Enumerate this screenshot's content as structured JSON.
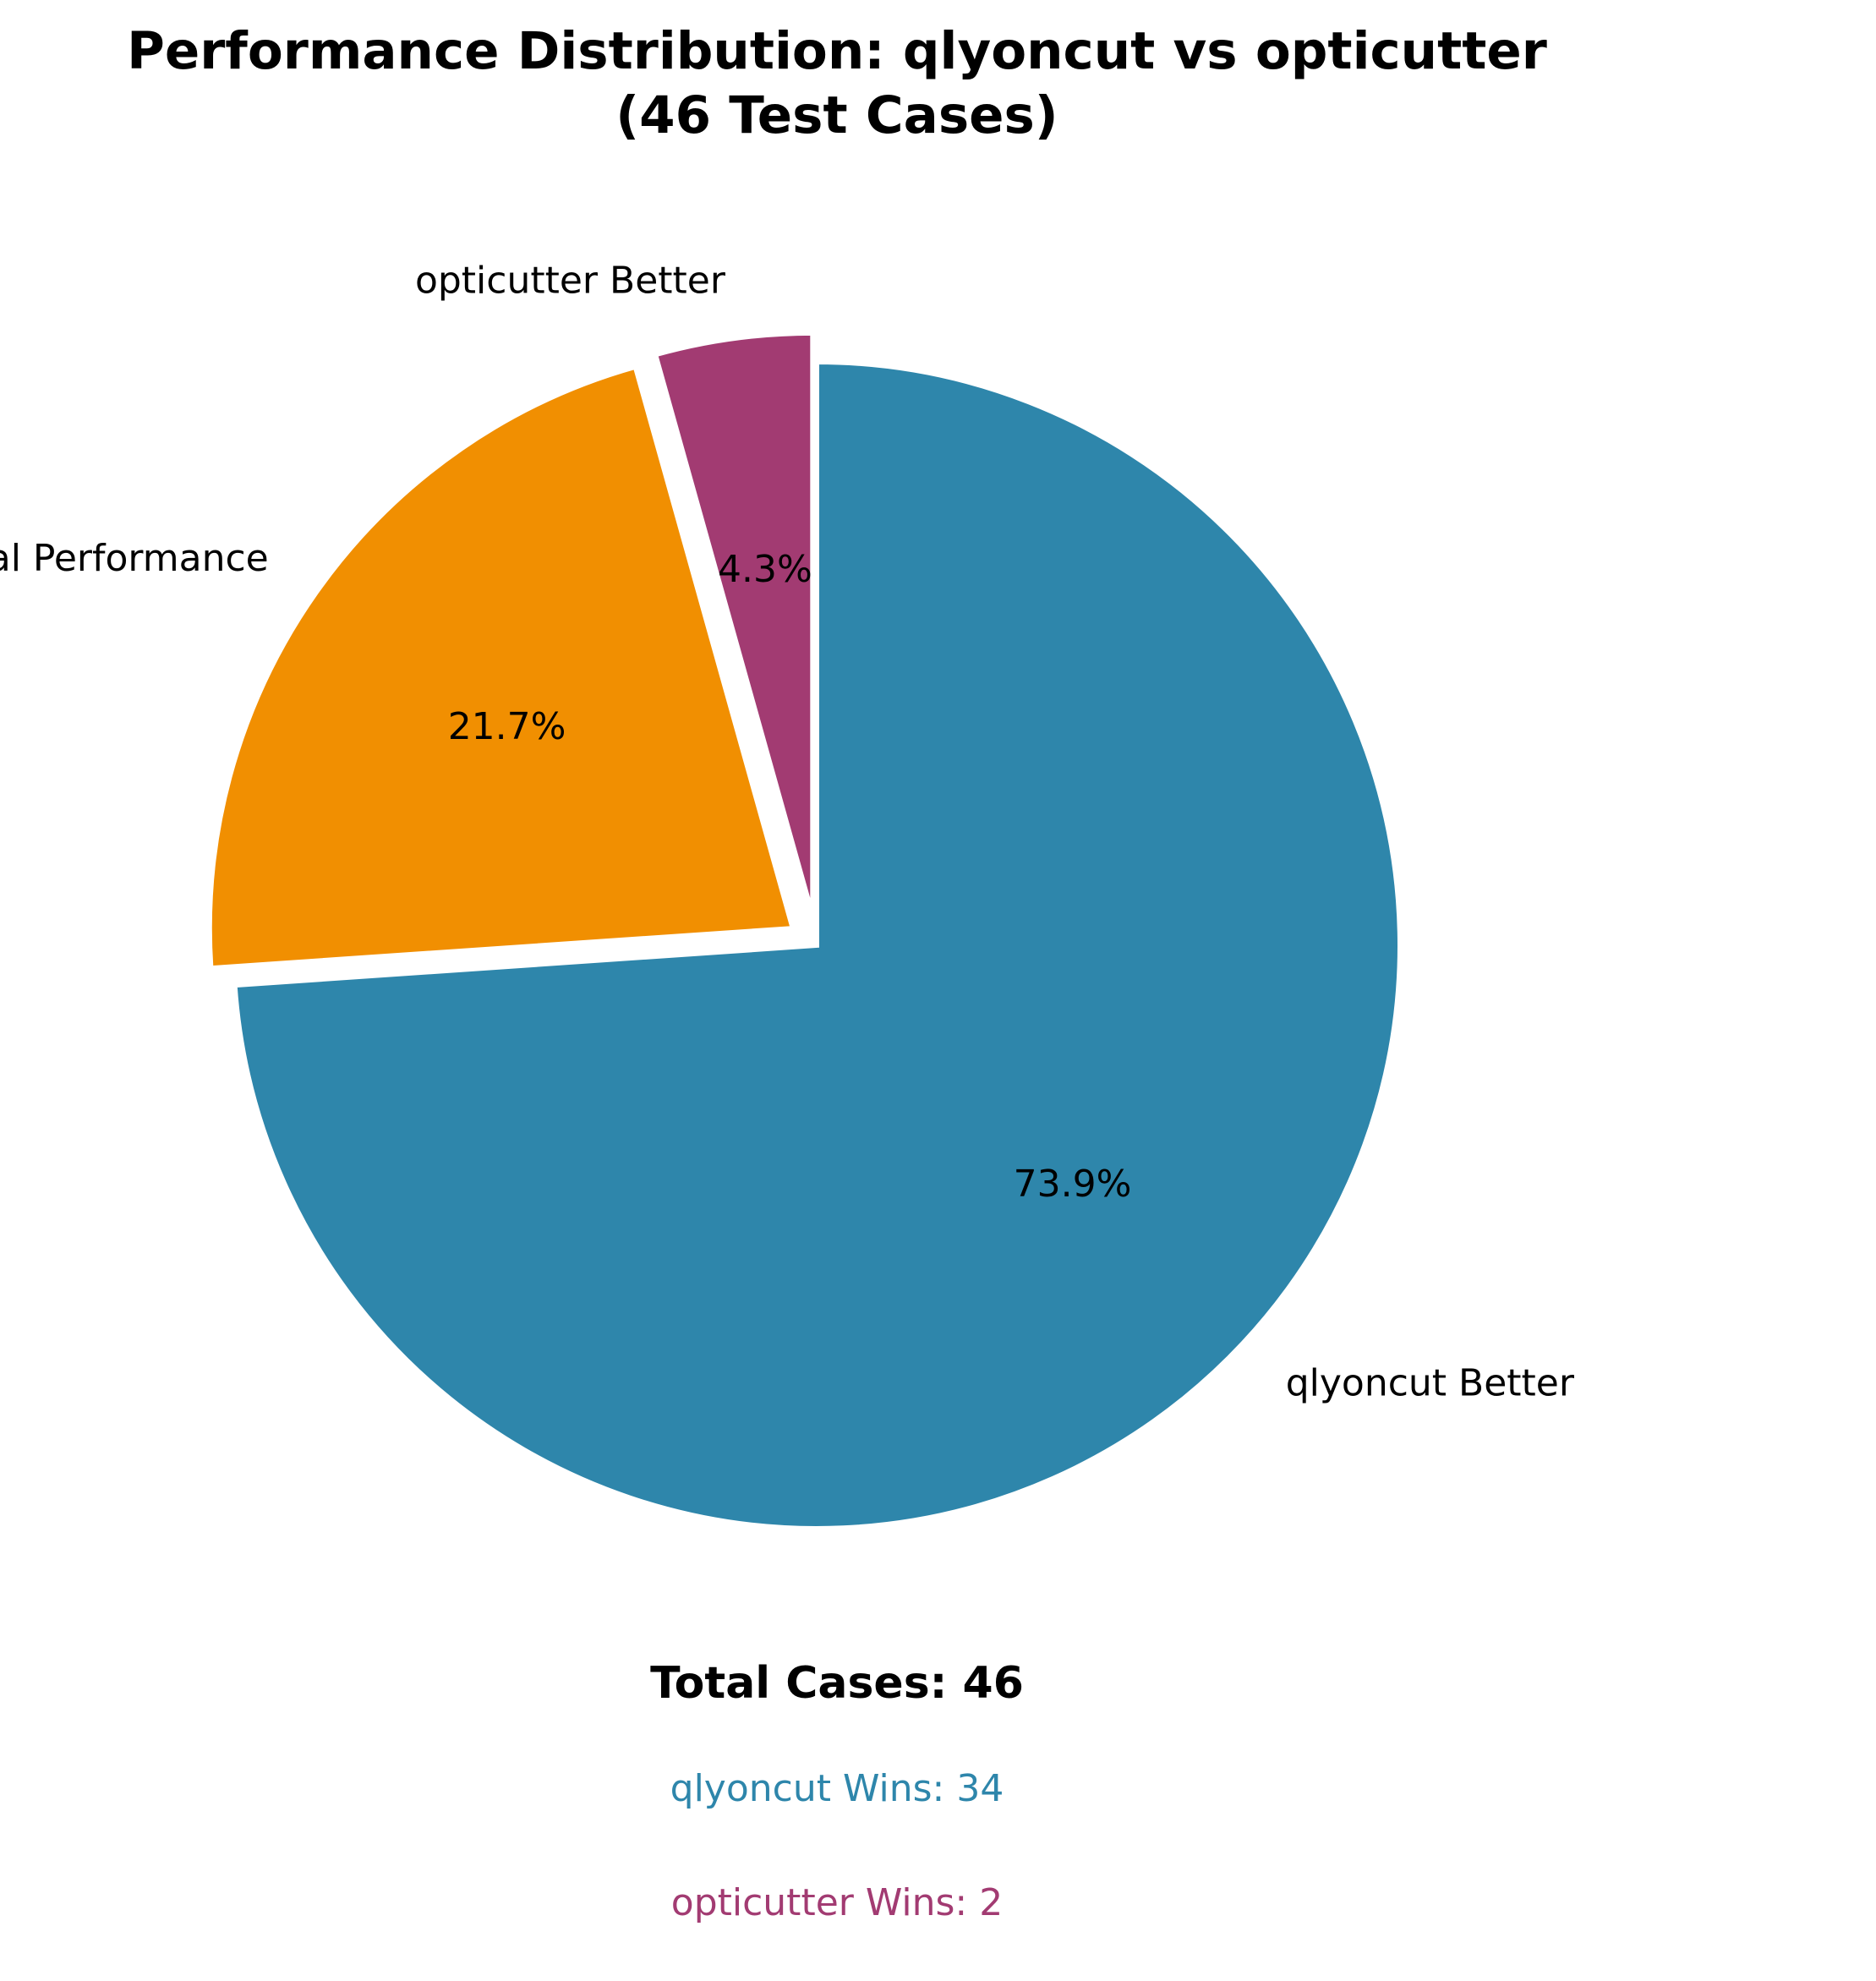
{
  "chart_data": {
    "type": "pie",
    "title_lines": [
      "Performance Distribution: qlyoncut vs opticutter",
      "(46 Test Cases)"
    ],
    "slices": [
      {
        "label": "qlyoncut Better",
        "value": 34,
        "percent_label": "73.9%",
        "color": "#2e86ab",
        "exploded": false
      },
      {
        "label": "Equal Performance",
        "value": 10,
        "percent_label": "21.7%",
        "color": "#f18f01",
        "exploded": true
      },
      {
        "label": "opticutter Better",
        "value": 2,
        "percent_label": "4.3%",
        "color": "#a23b72",
        "exploded": true
      }
    ],
    "start_angle_deg": 90,
    "direction": "clockwise",
    "legend": "none",
    "summary": {
      "total": "Total Cases: 46",
      "lines": [
        {
          "text": "qlyoncut Wins: 34",
          "color": "#2e86ab"
        },
        {
          "text": "opticutter Wins: 2",
          "color": "#a23b72"
        }
      ]
    }
  }
}
